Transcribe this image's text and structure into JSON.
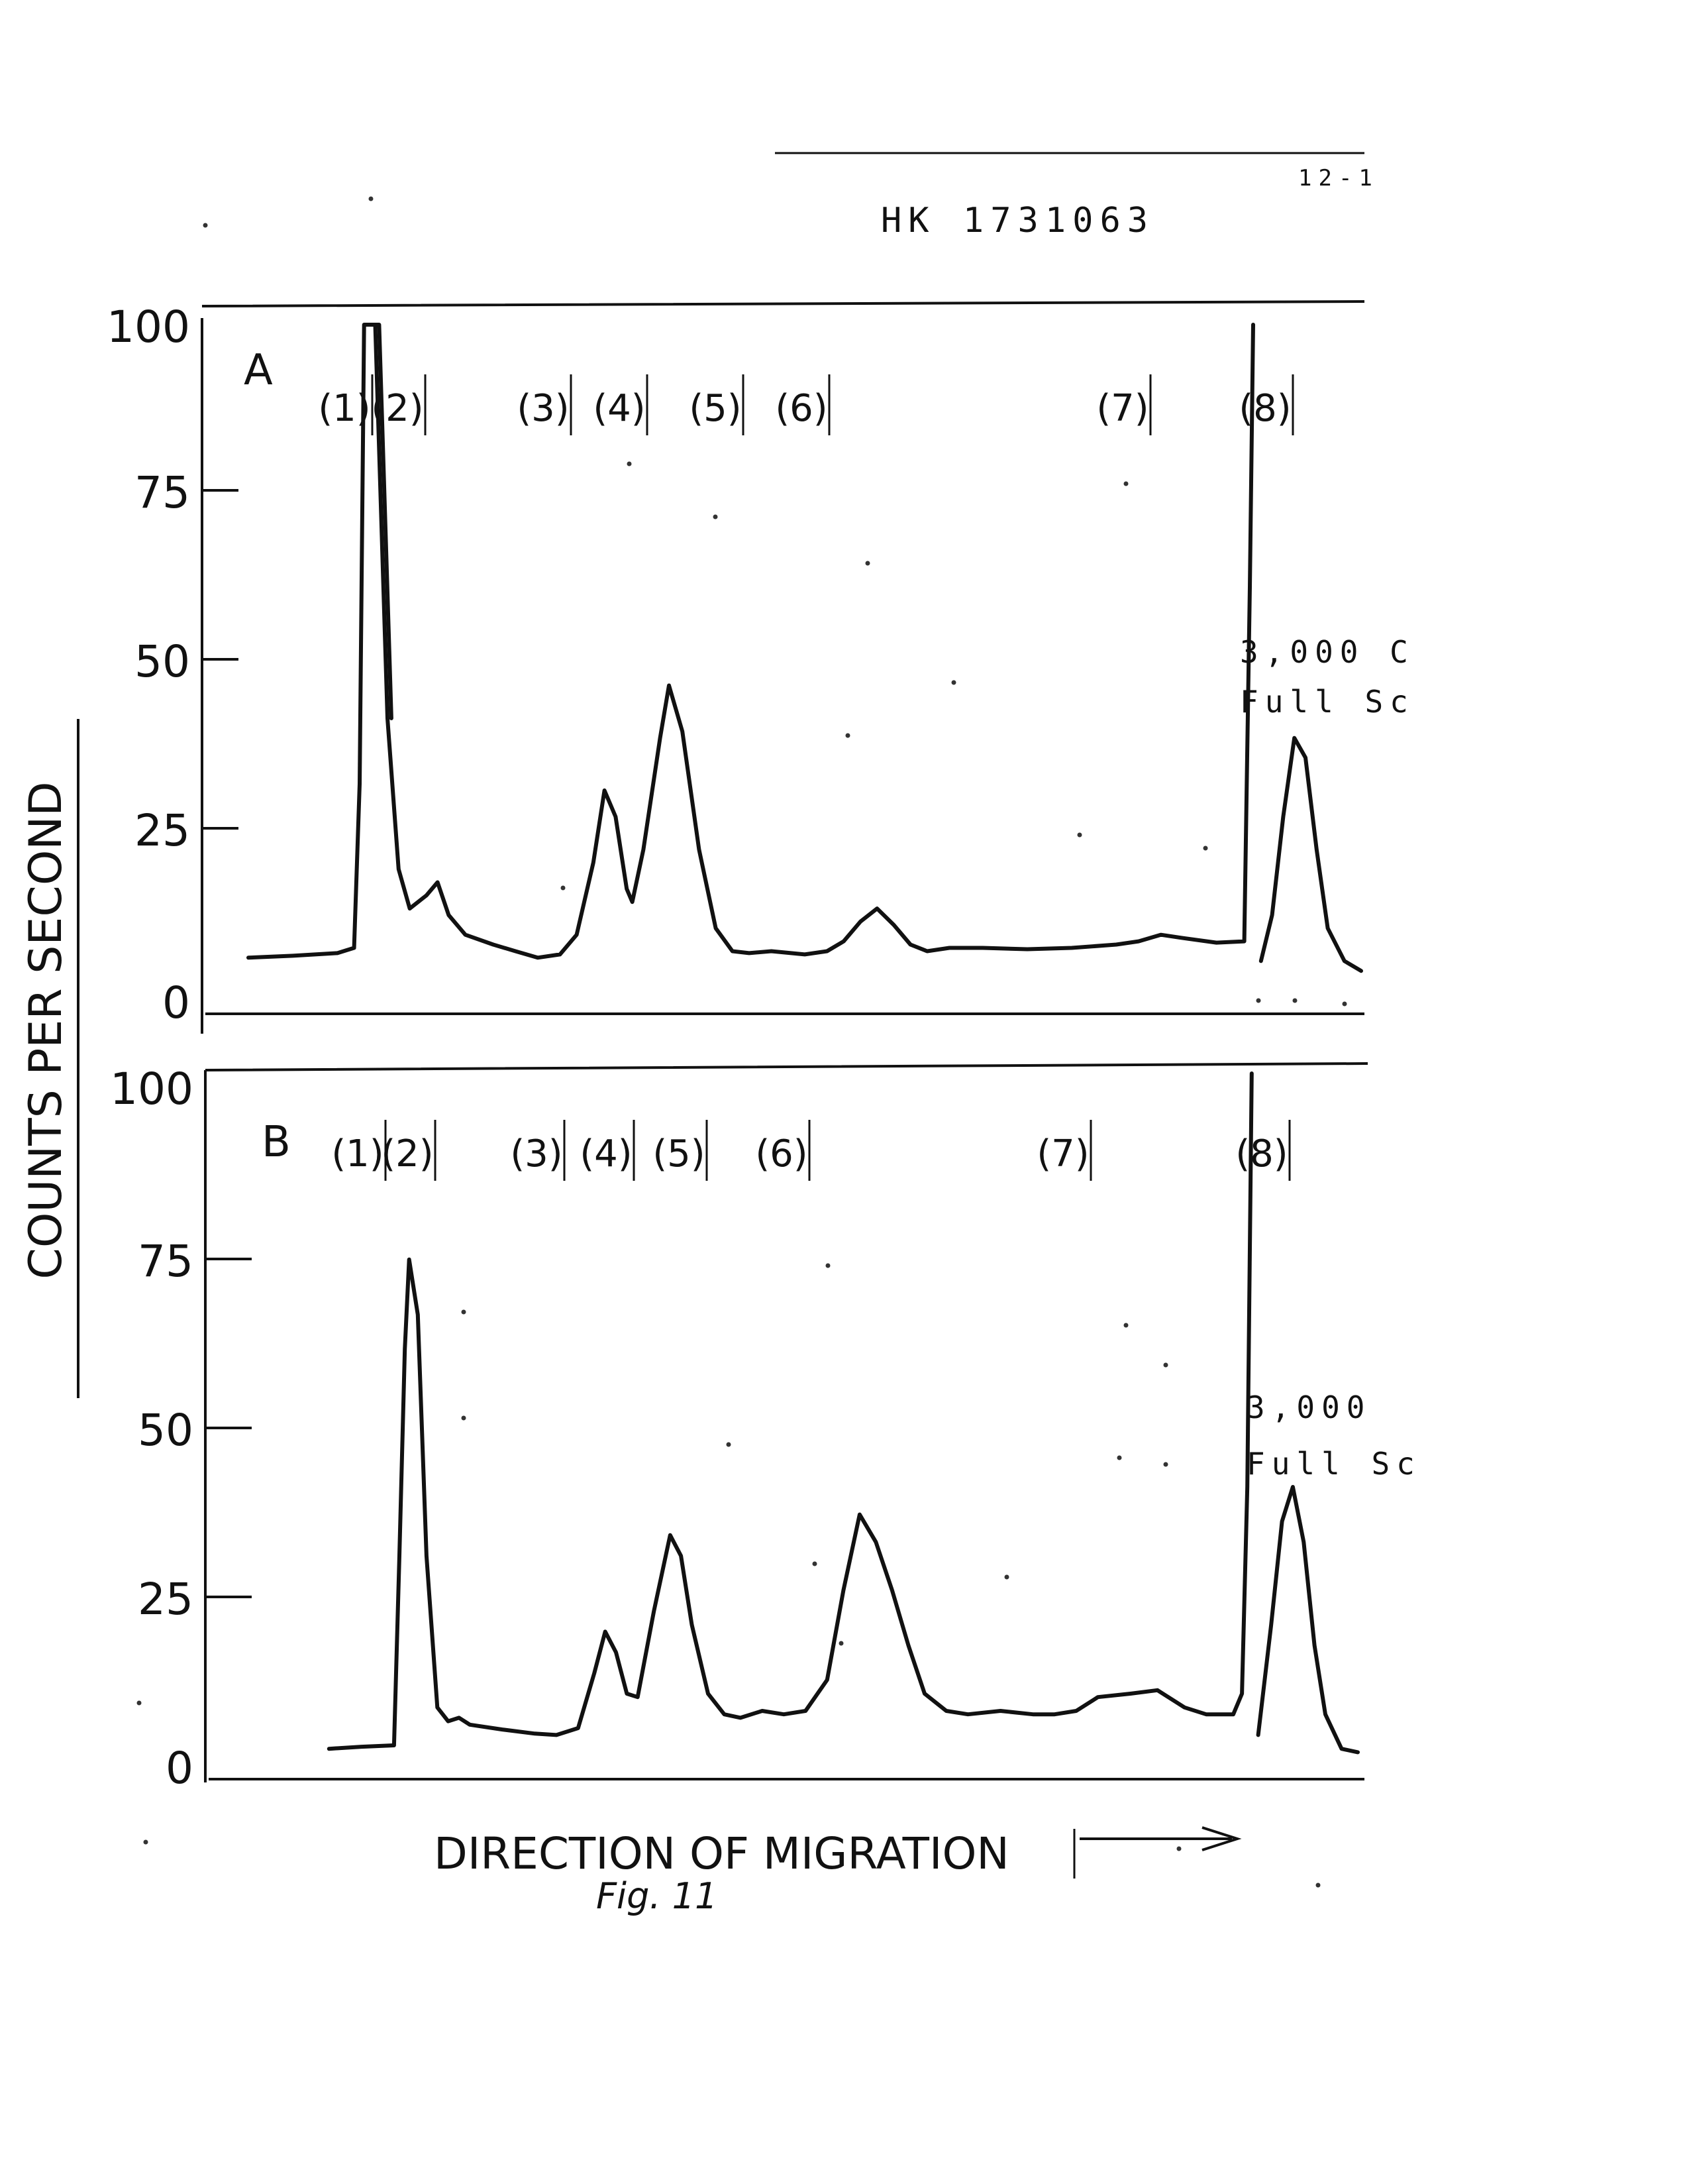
{
  "header": {
    "page_ref": "12-1",
    "doc_id": "HK 1731063"
  },
  "y_axis_title": "COUNTS PER SECOND",
  "x_axis_title": "DIRECTION OF MIGRATION",
  "caption": "Fig. 11",
  "chart_data": [
    {
      "type": "line",
      "panel_label": "A",
      "ylim": [
        0,
        100
      ],
      "yticks": [
        "0",
        "25",
        "50",
        "75",
        "100"
      ],
      "ylabel": "COUNTS PER SECOND",
      "xlabel": "DIRECTION OF MIGRATION",
      "grid": false,
      "peak_labels": [
        "(1)",
        "(2)",
        "(3)",
        "(4)",
        "(5)",
        "(6)",
        "(7)",
        "(8)"
      ],
      "scale_note": [
        "3,000 C",
        "Full Sc"
      ],
      "main_trace": [
        [
          0,
          3.5
        ],
        [
          4,
          3.8
        ],
        [
          8,
          4.2
        ],
        [
          9.5,
          5
        ],
        [
          10,
          30
        ],
        [
          10.4,
          100
        ],
        [
          11.4,
          100
        ],
        [
          12.5,
          40
        ],
        [
          13.5,
          17
        ],
        [
          14.5,
          11
        ],
        [
          16,
          13
        ],
        [
          17,
          15
        ],
        [
          18,
          10
        ],
        [
          19.5,
          7
        ],
        [
          22,
          5.5
        ],
        [
          24,
          4.5
        ],
        [
          26,
          3.5
        ],
        [
          28,
          4
        ],
        [
          29.5,
          7
        ],
        [
          31,
          18
        ],
        [
          32,
          29
        ],
        [
          33,
          25
        ],
        [
          34,
          14
        ],
        [
          34.5,
          12
        ],
        [
          35.5,
          20
        ],
        [
          37,
          37
        ],
        [
          37.8,
          45
        ],
        [
          39,
          38
        ],
        [
          40.5,
          20
        ],
        [
          42,
          8
        ],
        [
          43.5,
          4.5
        ],
        [
          45,
          4.2
        ],
        [
          47,
          4.5
        ],
        [
          50,
          4
        ],
        [
          52,
          4.5
        ],
        [
          53.5,
          6
        ],
        [
          55,
          9
        ],
        [
          56.5,
          11
        ],
        [
          58,
          8.5
        ],
        [
          59.5,
          5.5
        ],
        [
          61,
          4.5
        ],
        [
          63,
          5
        ],
        [
          66,
          5
        ],
        [
          70,
          4.8
        ],
        [
          74,
          5
        ],
        [
          78,
          5.5
        ],
        [
          80,
          6
        ],
        [
          82,
          7
        ],
        [
          84,
          6.5
        ],
        [
          87,
          5.8
        ],
        [
          89.5,
          6
        ],
        [
          90,
          60
        ],
        [
          90.3,
          100
        ]
      ],
      "scale_trace": [
        [
          91,
          3
        ],
        [
          92,
          10
        ],
        [
          93,
          25
        ],
        [
          94,
          37
        ],
        [
          95,
          34
        ],
        [
          96,
          20
        ],
        [
          97,
          8
        ],
        [
          98.5,
          3
        ],
        [
          100,
          1.5
        ]
      ]
    },
    {
      "type": "line",
      "panel_label": "B",
      "ylim": [
        0,
        100
      ],
      "yticks": [
        "0",
        "25",
        "50",
        "75",
        "100"
      ],
      "ylabel": "COUNTS PER SECOND",
      "xlabel": "DIRECTION OF MIGRATION",
      "grid": false,
      "peak_labels": [
        "(1)",
        "(2)",
        "(3)",
        "(4)",
        "(5)",
        "(6)",
        "(7)",
        "(8)"
      ],
      "scale_note": [
        "3,000",
        "Full Sc"
      ],
      "main_trace": [
        [
          5,
          2
        ],
        [
          8,
          2.3
        ],
        [
          11,
          2.5
        ],
        [
          11.5,
          30
        ],
        [
          12,
          60
        ],
        [
          12.4,
          73
        ],
        [
          13.2,
          65
        ],
        [
          14,
          30
        ],
        [
          15,
          8
        ],
        [
          16,
          6
        ],
        [
          17,
          6.5
        ],
        [
          18,
          5.5
        ],
        [
          21,
          4.8
        ],
        [
          24,
          4.2
        ],
        [
          26,
          4
        ],
        [
          28,
          5
        ],
        [
          29.5,
          13
        ],
        [
          30.5,
          19
        ],
        [
          31.5,
          16
        ],
        [
          32.5,
          10
        ],
        [
          33.5,
          9.5
        ],
        [
          35,
          22
        ],
        [
          36.5,
          33
        ],
        [
          37.5,
          30
        ],
        [
          38.5,
          20
        ],
        [
          40,
          10
        ],
        [
          41.5,
          7
        ],
        [
          43,
          6.5
        ],
        [
          45,
          7.5
        ],
        [
          47,
          7
        ],
        [
          49,
          7.5
        ],
        [
          51,
          12
        ],
        [
          52.5,
          25
        ],
        [
          54,
          36
        ],
        [
          55.5,
          32
        ],
        [
          57,
          25
        ],
        [
          58.5,
          17
        ],
        [
          60,
          10
        ],
        [
          62,
          7.5
        ],
        [
          64,
          7
        ],
        [
          67,
          7.5
        ],
        [
          70,
          7
        ],
        [
          72,
          7
        ],
        [
          74,
          7.5
        ],
        [
          76,
          9.5
        ],
        [
          79,
          10
        ],
        [
          81.5,
          10.5
        ],
        [
          84,
          8
        ],
        [
          86,
          7
        ],
        [
          88.5,
          7
        ],
        [
          89.3,
          10
        ],
        [
          89.8,
          40
        ],
        [
          90.2,
          100
        ]
      ],
      "scale_trace": [
        [
          90.8,
          4
        ],
        [
          92,
          20
        ],
        [
          93,
          35
        ],
        [
          94,
          40
        ],
        [
          95,
          32
        ],
        [
          96,
          17
        ],
        [
          97,
          7
        ],
        [
          98.5,
          2
        ],
        [
          100,
          1.5
        ]
      ]
    }
  ]
}
